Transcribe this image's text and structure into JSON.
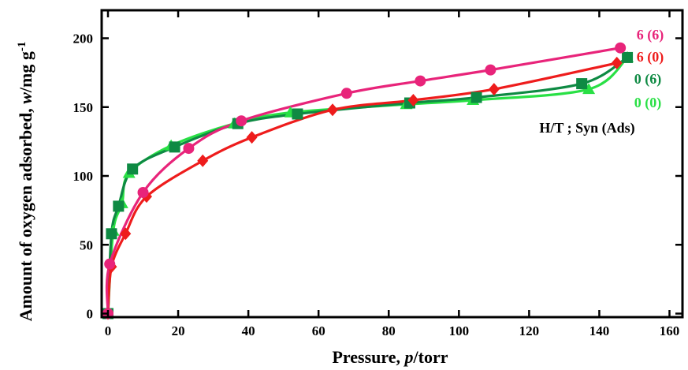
{
  "chart_data": {
    "type": "line",
    "xlabel": "Pressure, p/torr",
    "ylabel": "Amount of oxygen adsorbed, w/mg g-1",
    "xlim": [
      0,
      160
    ],
    "ylim": [
      0,
      220
    ],
    "xticks": [
      0,
      20,
      40,
      60,
      80,
      100,
      120,
      140,
      160
    ],
    "yticks": [
      0,
      50,
      100,
      150,
      200
    ],
    "grid": false,
    "legend_placement": "top-right",
    "annotation": "H/T ; Syn (Ads)",
    "series": [
      {
        "name": "6 (6)",
        "color": "#e8247a",
        "marker": "circle",
        "x": [
          0,
          0.5,
          10,
          23,
          38,
          68,
          89,
          109,
          146
        ],
        "y": [
          0,
          36,
          88,
          120,
          140,
          160,
          169,
          177,
          193
        ]
      },
      {
        "name": "6 (0)",
        "color": "#ee1c1c",
        "marker": "diamond",
        "x": [
          0,
          1,
          5,
          11,
          27,
          41,
          64,
          87,
          110,
          145
        ],
        "y": [
          0,
          34,
          58,
          85,
          111,
          128,
          148,
          155,
          163,
          182
        ]
      },
      {
        "name": "0 (6)",
        "color": "#0e8a43",
        "marker": "square",
        "x": [
          0,
          1,
          3,
          7,
          19,
          37,
          54,
          86,
          105,
          135,
          148
        ],
        "y": [
          0,
          58,
          78,
          105,
          121,
          138,
          145,
          153,
          157,
          167,
          186
        ]
      },
      {
        "name": "0 (0)",
        "color": "#29e045",
        "marker": "triangle",
        "x": [
          0,
          1.5,
          4,
          6,
          18,
          36,
          52,
          85,
          104,
          137,
          148
        ],
        "y": [
          0,
          60,
          80,
          102,
          122,
          138,
          146,
          152,
          155,
          163,
          186
        ]
      }
    ]
  }
}
